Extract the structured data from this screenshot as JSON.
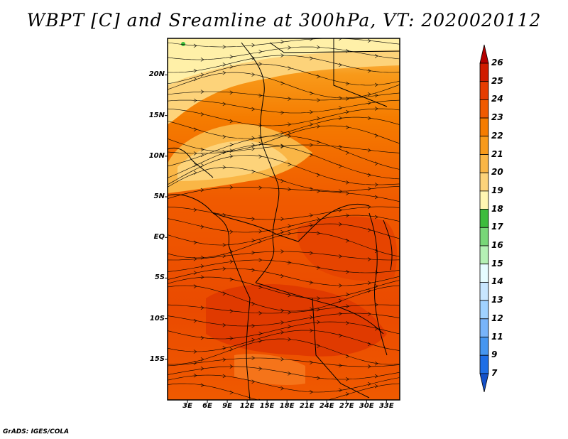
{
  "title": "WBPT [C] and Sreamline at 300hPa, VT: 2020020112",
  "map": {
    "lat_labels": [
      "20N",
      "15N",
      "10N",
      "5N",
      "EQ",
      "5S",
      "10S",
      "15S"
    ],
    "lat_values": [
      20,
      15,
      10,
      5,
      0,
      -5,
      -10,
      -15
    ],
    "lon_labels": [
      "3E",
      "6E",
      "9E",
      "12E",
      "15E",
      "18E",
      "21E",
      "24E",
      "27E",
      "30E",
      "33E"
    ],
    "lon_values": [
      3,
      6,
      9,
      12,
      15,
      18,
      21,
      24,
      27,
      30,
      33
    ],
    "lon_range": [
      0,
      35
    ],
    "lat_range": [
      -20,
      24.5
    ]
  },
  "colorbar": {
    "labels": [
      "26",
      "25",
      "24",
      "23",
      "22",
      "21",
      "20",
      "19",
      "18",
      "17",
      "16",
      "15",
      "14",
      "13",
      "12",
      "11",
      "9",
      "7"
    ],
    "colors": [
      "#b40000",
      "#d01c00",
      "#e63c00",
      "#f05a00",
      "#f57c00",
      "#f89a1a",
      "#fab646",
      "#fdd37a",
      "#fff6b2",
      "#3cbc3c",
      "#78d778",
      "#b4f0b4",
      "#e6fcff",
      "#c8e6ff",
      "#a0d2ff",
      "#78b4fa",
      "#4696f0",
      "#1e6ee6",
      "#1450c8"
    ]
  },
  "credit": "GrADS: IGES/COLA"
}
